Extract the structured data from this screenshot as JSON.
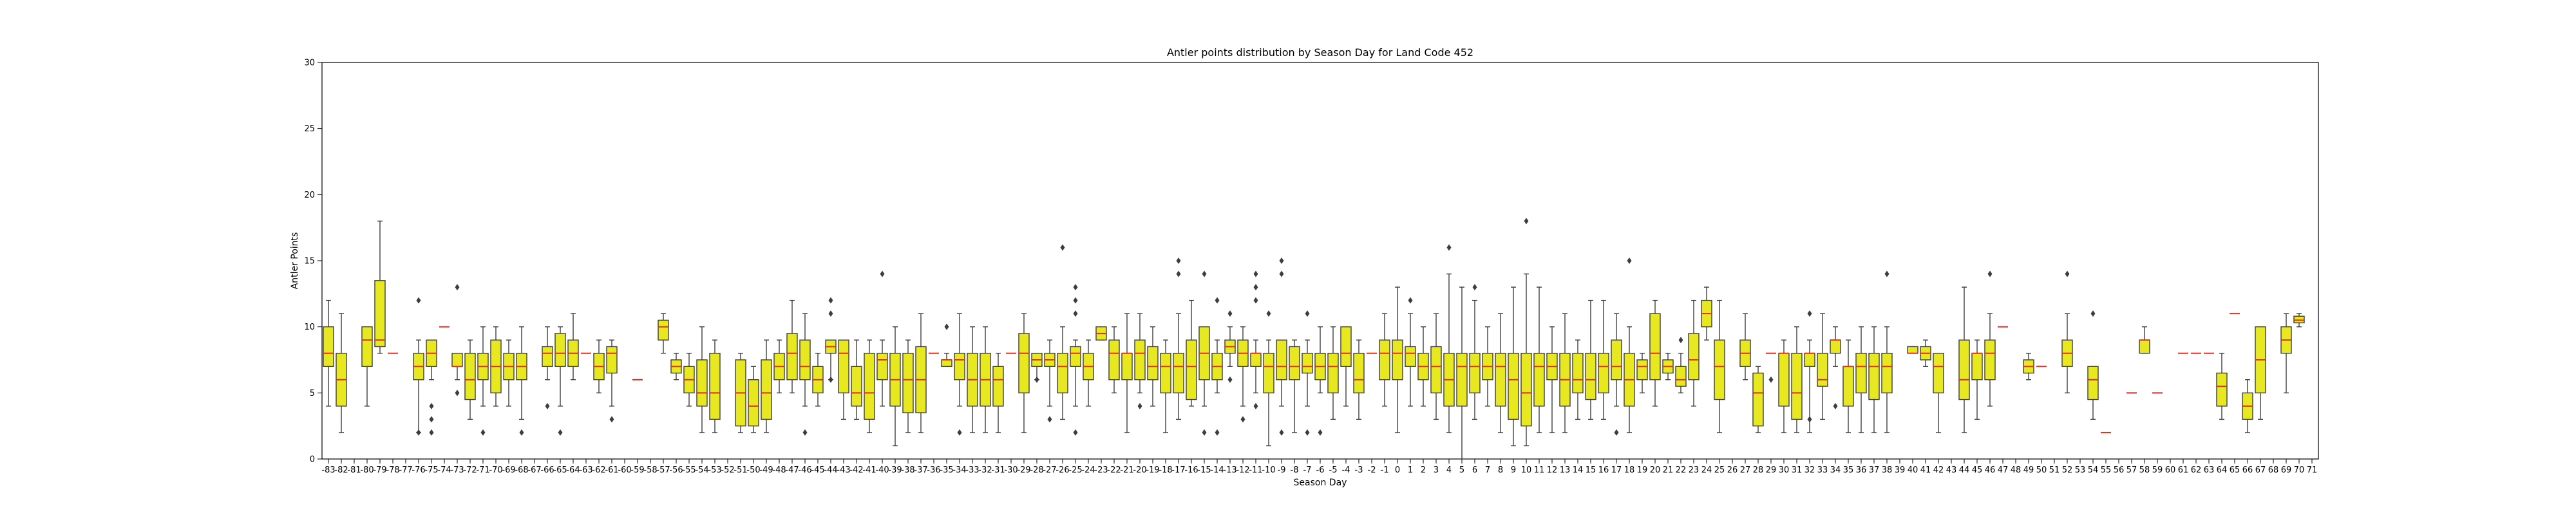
{
  "chart_data": {
    "type": "box",
    "title": "Antler points distribution by Season Day for Land Code 452",
    "xlabel": "Season Day",
    "ylabel": "Antler Points",
    "ylim": [
      0,
      30
    ],
    "yticks": [
      0,
      5,
      10,
      15,
      20,
      25,
      30
    ],
    "x_first": -83,
    "x_last": 71,
    "box_color": "#e8e820",
    "median_color": "#e03020",
    "grid": false,
    "boxes": [
      {
        "day": -83,
        "wl": 4,
        "q1": 7,
        "med": 8,
        "q3": 10,
        "wh": 12
      },
      {
        "day": -82,
        "wl": 2,
        "q1": 4,
        "med": 6,
        "q3": 8,
        "wh": 11
      },
      {
        "day": -80,
        "wl": 4,
        "q1": 7,
        "med": 9,
        "q3": 10,
        "wh": 10
      },
      {
        "day": -79,
        "wl": 8,
        "q1": 8.5,
        "med": 9,
        "q3": 13.5,
        "wh": 18
      },
      {
        "day": -78,
        "med": 8
      },
      {
        "day": -76,
        "wl": 2,
        "q1": 6,
        "med": 7,
        "q3": 8,
        "wh": 9,
        "fl": [
          2,
          12
        ]
      },
      {
        "day": -75,
        "wl": 6,
        "q1": 7,
        "med": 8,
        "q3": 9,
        "wh": 9,
        "fl": [
          2,
          3,
          4
        ]
      },
      {
        "day": -74,
        "med": 10
      },
      {
        "day": -73,
        "wl": 6,
        "q1": 7,
        "med": 7,
        "q3": 8,
        "wh": 8,
        "fl": [
          5,
          13
        ]
      },
      {
        "day": -72,
        "wl": 3,
        "q1": 4.5,
        "med": 6,
        "q3": 8,
        "wh": 9
      },
      {
        "day": -71,
        "wl": 4,
        "q1": 6,
        "med": 7,
        "q3": 8,
        "wh": 10,
        "fl": [
          2
        ]
      },
      {
        "day": -70,
        "wl": 4,
        "q1": 5,
        "med": 7,
        "q3": 9,
        "wh": 10
      },
      {
        "day": -69,
        "wl": 4,
        "q1": 6,
        "med": 7,
        "q3": 8,
        "wh": 9
      },
      {
        "day": -68,
        "wl": 3,
        "q1": 6,
        "med": 7,
        "q3": 8,
        "wh": 10,
        "fl": [
          2
        ]
      },
      {
        "day": -66,
        "wl": 6,
        "q1": 7,
        "med": 8,
        "q3": 8.5,
        "wh": 10,
        "fl": [
          4
        ]
      },
      {
        "day": -65,
        "wl": 4,
        "q1": 7,
        "med": 8,
        "q3": 9.5,
        "wh": 10,
        "fl": [
          2
        ]
      },
      {
        "day": -64,
        "wl": 6,
        "q1": 7,
        "med": 8,
        "q3": 9,
        "wh": 11
      },
      {
        "day": -63,
        "med": 8
      },
      {
        "day": -62,
        "wl": 5,
        "q1": 6,
        "med": 7,
        "q3": 8,
        "wh": 9
      },
      {
        "day": -61,
        "wl": 4,
        "q1": 6.5,
        "med": 8,
        "q3": 8.5,
        "wh": 9,
        "fl": [
          3
        ]
      },
      {
        "day": -59,
        "med": 6
      },
      {
        "day": -57,
        "wl": 8,
        "q1": 9,
        "med": 10,
        "q3": 10.5,
        "wh": 11
      },
      {
        "day": -56,
        "wl": 6,
        "q1": 6.5,
        "med": 7,
        "q3": 7.5,
        "wh": 8
      },
      {
        "day": -55,
        "wl": 4,
        "q1": 5,
        "med": 6,
        "q3": 7,
        "wh": 8
      },
      {
        "day": -54,
        "wl": 2,
        "q1": 4,
        "med": 5,
        "q3": 7.5,
        "wh": 10
      },
      {
        "day": -53,
        "wl": 2,
        "q1": 3,
        "med": 5,
        "q3": 8,
        "wh": 9
      },
      {
        "day": -51,
        "wl": 2,
        "q1": 2.5,
        "med": 5,
        "q3": 7.5,
        "wh": 8
      },
      {
        "day": -50,
        "wl": 2,
        "q1": 2.5,
        "med": 4,
        "q3": 6,
        "wh": 7
      },
      {
        "day": -49,
        "wl": 2,
        "q1": 3,
        "med": 5,
        "q3": 7.5,
        "wh": 9
      },
      {
        "day": -48,
        "wl": 5,
        "q1": 6,
        "med": 7,
        "q3": 8,
        "wh": 9
      },
      {
        "day": -47,
        "wl": 5,
        "q1": 6,
        "med": 8,
        "q3": 9.5,
        "wh": 12
      },
      {
        "day": -46,
        "wl": 4,
        "q1": 6,
        "med": 7,
        "q3": 9,
        "wh": 11,
        "fl": [
          2
        ]
      },
      {
        "day": -45,
        "wl": 4,
        "q1": 5,
        "med": 6,
        "q3": 7,
        "wh": 8
      },
      {
        "day": -44,
        "wl": 6,
        "q1": 8,
        "med": 8.5,
        "q3": 9,
        "wh": 9,
        "fl": [
          6,
          11,
          12
        ]
      },
      {
        "day": -43,
        "wl": 3,
        "q1": 5,
        "med": 8,
        "q3": 9,
        "wh": 9
      },
      {
        "day": -42,
        "wl": 3,
        "q1": 4,
        "med": 5,
        "q3": 7,
        "wh": 9
      },
      {
        "day": -41,
        "wl": 2,
        "q1": 3,
        "med": 5,
        "q3": 8,
        "wh": 9
      },
      {
        "day": -40,
        "wl": 4,
        "q1": 6,
        "med": 7.5,
        "q3": 8,
        "wh": 9,
        "fl": [
          14
        ]
      },
      {
        "day": -39,
        "wl": 1,
        "q1": 4,
        "med": 6,
        "q3": 8,
        "wh": 10
      },
      {
        "day": -38,
        "wl": 2,
        "q1": 3.5,
        "med": 6,
        "q3": 8,
        "wh": 9
      },
      {
        "day": -37,
        "wl": 2,
        "q1": 3.5,
        "med": 6,
        "q3": 8.5,
        "wh": 11
      },
      {
        "day": -36,
        "med": 8
      },
      {
        "day": -35,
        "wl": 7,
        "q1": 7,
        "med": 7.5,
        "q3": 7.5,
        "wh": 8,
        "fl": [
          10
        ]
      },
      {
        "day": -34,
        "wl": 4,
        "q1": 6,
        "med": 7.5,
        "q3": 8,
        "wh": 11,
        "fl": [
          2
        ]
      },
      {
        "day": -33,
        "wl": 2,
        "q1": 4,
        "med": 6,
        "q3": 8,
        "wh": 10
      },
      {
        "day": -32,
        "wl": 2,
        "q1": 4,
        "med": 6,
        "q3": 8,
        "wh": 10
      },
      {
        "day": -31,
        "wl": 2,
        "q1": 4,
        "med": 6,
        "q3": 7,
        "wh": 8
      },
      {
        "day": -30,
        "med": 8
      },
      {
        "day": -29,
        "wl": 2,
        "q1": 5,
        "med": 8,
        "q3": 9.5,
        "wh": 11
      },
      {
        "day": -28,
        "wl": 6,
        "q1": 7,
        "med": 7.5,
        "q3": 8,
        "wh": 8,
        "fl": [
          6
        ]
      },
      {
        "day": -27,
        "wl": 4,
        "q1": 7,
        "med": 7.5,
        "q3": 8,
        "wh": 9,
        "fl": [
          3
        ]
      },
      {
        "day": -26,
        "wl": 3,
        "q1": 5,
        "med": 7,
        "q3": 8,
        "wh": 10,
        "fl": [
          16
        ]
      },
      {
        "day": -25,
        "wl": 4,
        "q1": 7,
        "med": 8,
        "q3": 8.5,
        "wh": 9,
        "fl": [
          2,
          11,
          12,
          13
        ]
      },
      {
        "day": -24,
        "wl": 4,
        "q1": 6,
        "med": 7,
        "q3": 8,
        "wh": 9
      },
      {
        "day": -23,
        "wl": 9,
        "q1": 9,
        "med": 9.5,
        "q3": 10,
        "wh": 10
      },
      {
        "day": -22,
        "wl": 5,
        "q1": 6,
        "med": 8,
        "q3": 9,
        "wh": 10
      },
      {
        "day": -21,
        "wl": 2,
        "q1": 6,
        "med": 8,
        "q3": 8,
        "wh": 11
      },
      {
        "day": -20,
        "wl": 5,
        "q1": 6,
        "med": 8,
        "q3": 9,
        "wh": 11,
        "fl": [
          4
        ]
      },
      {
        "day": -19,
        "wl": 4,
        "q1": 6,
        "med": 7,
        "q3": 8.5,
        "wh": 10
      },
      {
        "day": -18,
        "wl": 2,
        "q1": 5,
        "med": 7,
        "q3": 8,
        "wh": 9
      },
      {
        "day": -17,
        "wl": 3,
        "q1": 5,
        "med": 7,
        "q3": 8,
        "wh": 11,
        "fl": [
          14,
          15
        ]
      },
      {
        "day": -16,
        "wl": 4,
        "q1": 4.5,
        "med": 7,
        "q3": 9,
        "wh": 12
      },
      {
        "day": -15,
        "wl": 4,
        "q1": 6,
        "med": 8,
        "q3": 10,
        "wh": 10,
        "fl": [
          2,
          14
        ]
      },
      {
        "day": -14,
        "wl": 5,
        "q1": 6,
        "med": 7,
        "q3": 8,
        "wh": 9,
        "fl": [
          2,
          12
        ]
      },
      {
        "day": -13,
        "wl": 7,
        "q1": 8,
        "med": 8.5,
        "q3": 9,
        "wh": 10,
        "fl": [
          6,
          11
        ]
      },
      {
        "day": -12,
        "wl": 4,
        "q1": 7,
        "med": 8,
        "q3": 9,
        "wh": 10,
        "fl": [
          3
        ]
      },
      {
        "day": -11,
        "wl": 5,
        "q1": 7,
        "med": 8,
        "q3": 8,
        "wh": 9,
        "fl": [
          4,
          12,
          13,
          14
        ]
      },
      {
        "day": -10,
        "wl": 1,
        "q1": 5,
        "med": 7,
        "q3": 8,
        "wh": 9,
        "fl": [
          11
        ]
      },
      {
        "day": -9,
        "wl": 4,
        "q1": 6,
        "med": 7,
        "q3": 9,
        "wh": 9,
        "fl": [
          2,
          14,
          15
        ]
      },
      {
        "day": -8,
        "wl": 2,
        "q1": 6,
        "med": 7,
        "q3": 8.5,
        "wh": 9
      },
      {
        "day": -7,
        "wl": 4,
        "q1": 6.5,
        "med": 7,
        "q3": 8,
        "wh": 9,
        "fl": [
          2,
          11
        ]
      },
      {
        "day": -6,
        "wl": 5,
        "q1": 6,
        "med": 7,
        "q3": 8,
        "wh": 10,
        "fl": [
          2
        ]
      },
      {
        "day": -5,
        "wl": 3,
        "q1": 5,
        "med": 7,
        "q3": 8,
        "wh": 10
      },
      {
        "day": -4,
        "wl": 4,
        "q1": 7,
        "med": 8,
        "q3": 10,
        "wh": 10
      },
      {
        "day": -3,
        "wl": 3,
        "q1": 5,
        "med": 6,
        "q3": 8,
        "wh": 9
      },
      {
        "day": -2,
        "med": 8
      },
      {
        "day": -1,
        "wl": 4,
        "q1": 6,
        "med": 8,
        "q3": 9,
        "wh": 11
      },
      {
        "day": 0,
        "wl": 2,
        "q1": 6,
        "med": 8,
        "q3": 9,
        "wh": 13
      },
      {
        "day": 1,
        "wl": 4,
        "q1": 7,
        "med": 8,
        "q3": 8.5,
        "wh": 11,
        "fl": [
          12
        ]
      },
      {
        "day": 2,
        "wl": 4,
        "q1": 6,
        "med": 7,
        "q3": 8,
        "wh": 10
      },
      {
        "day": 3,
        "wl": 3,
        "q1": 5,
        "med": 7,
        "q3": 8.5,
        "wh": 11
      },
      {
        "day": 4,
        "wl": 2,
        "q1": 4,
        "med": 6,
        "q3": 8,
        "wh": 14,
        "fl": [
          16
        ]
      },
      {
        "day": 5,
        "wl": 0,
        "q1": 4,
        "med": 7,
        "q3": 8,
        "wh": 13
      },
      {
        "day": 6,
        "wl": 3,
        "q1": 5,
        "med": 7,
        "q3": 8,
        "wh": 12,
        "fl": [
          13
        ]
      },
      {
        "day": 7,
        "wl": 4,
        "q1": 6,
        "med": 7,
        "q3": 8,
        "wh": 10
      },
      {
        "day": 8,
        "wl": 2,
        "q1": 4,
        "med": 7,
        "q3": 8,
        "wh": 11
      },
      {
        "day": 9,
        "wl": 1,
        "q1": 3,
        "med": 6,
        "q3": 8,
        "wh": 13
      },
      {
        "day": 10,
        "wl": 1,
        "q1": 2.5,
        "med": 5,
        "q3": 8,
        "wh": 14,
        "fl": [
          18
        ]
      },
      {
        "day": 11,
        "wl": 2,
        "q1": 4,
        "med": 7,
        "q3": 8,
        "wh": 13
      },
      {
        "day": 12,
        "wl": 2,
        "q1": 6,
        "med": 7,
        "q3": 8,
        "wh": 10
      },
      {
        "day": 13,
        "wl": 2,
        "q1": 4,
        "med": 6,
        "q3": 8,
        "wh": 11
      },
      {
        "day": 14,
        "wl": 3,
        "q1": 5,
        "med": 6,
        "q3": 8,
        "wh": 9
      },
      {
        "day": 15,
        "wl": 3,
        "q1": 4.5,
        "med": 6,
        "q3": 8,
        "wh": 12
      },
      {
        "day": 16,
        "wl": 3,
        "q1": 5,
        "med": 7,
        "q3": 8,
        "wh": 12
      },
      {
        "day": 17,
        "wl": 4,
        "q1": 6,
        "med": 7,
        "q3": 9,
        "wh": 11,
        "fl": [
          2
        ]
      },
      {
        "day": 18,
        "wl": 2,
        "q1": 4,
        "med": 6,
        "q3": 8,
        "wh": 10,
        "fl": [
          15
        ]
      },
      {
        "day": 19,
        "wl": 5,
        "q1": 6,
        "med": 7,
        "q3": 7.5,
        "wh": 8
      },
      {
        "day": 20,
        "wl": 4,
        "q1": 6,
        "med": 8,
        "q3": 11,
        "wh": 12
      },
      {
        "day": 21,
        "wl": 6,
        "q1": 6.5,
        "med": 7,
        "q3": 7.5,
        "wh": 8
      },
      {
        "day": 22,
        "wl": 5,
        "q1": 5.5,
        "med": 6,
        "q3": 7,
        "wh": 8,
        "fl": [
          9
        ]
      },
      {
        "day": 23,
        "wl": 4,
        "q1": 6,
        "med": 7.5,
        "q3": 9.5,
        "wh": 12
      },
      {
        "day": 24,
        "wl": 9,
        "q1": 10,
        "med": 11,
        "q3": 12,
        "wh": 13
      },
      {
        "day": 25,
        "wl": 2,
        "q1": 4.5,
        "med": 7,
        "q3": 9,
        "wh": 12
      },
      {
        "day": 27,
        "wl": 6,
        "q1": 7,
        "med": 8,
        "q3": 9,
        "wh": 11
      },
      {
        "day": 28,
        "wl": 2,
        "q1": 2.5,
        "med": 5,
        "q3": 6.5,
        "wh": 7
      },
      {
        "day": 29,
        "med": 8,
        "fl": [
          6
        ]
      },
      {
        "day": 30,
        "wl": 2,
        "q1": 4,
        "med": 8,
        "q3": 8,
        "wh": 9
      },
      {
        "day": 31,
        "wl": 2,
        "q1": 3,
        "med": 5,
        "q3": 8,
        "wh": 10
      },
      {
        "day": 32,
        "wl": 2,
        "q1": 7,
        "med": 8,
        "q3": 8,
        "wh": 9,
        "fl": [
          3,
          11
        ]
      },
      {
        "day": 33,
        "wl": 3,
        "q1": 5.5,
        "med": 6,
        "q3": 8,
        "wh": 11
      },
      {
        "day": 34,
        "wl": 7,
        "q1": 8,
        "med": 9,
        "q3": 9,
        "wh": 10,
        "fl": [
          4
        ]
      },
      {
        "day": 35,
        "wl": 2,
        "q1": 4,
        "med": 7,
        "q3": 7,
        "wh": 9
      },
      {
        "day": 36,
        "wl": 2,
        "q1": 5,
        "med": 7,
        "q3": 8,
        "wh": 10
      },
      {
        "day": 37,
        "wl": 2,
        "q1": 4.5,
        "med": 7,
        "q3": 8,
        "wh": 10
      },
      {
        "day": 38,
        "wl": 2,
        "q1": 5,
        "med": 7,
        "q3": 8,
        "wh": 10,
        "fl": [
          14
        ]
      },
      {
        "day": 40,
        "wl": 8,
        "q1": 8,
        "med": 8,
        "q3": 8.5,
        "wh": 8.5
      },
      {
        "day": 41,
        "wl": 7,
        "q1": 7.5,
        "med": 8,
        "q3": 8.5,
        "wh": 9
      },
      {
        "day": 42,
        "wl": 2,
        "q1": 5,
        "med": 7,
        "q3": 8,
        "wh": 8
      },
      {
        "day": 44,
        "wl": 2,
        "q1": 4.5,
        "med": 6,
        "q3": 9,
        "wh": 13
      },
      {
        "day": 45,
        "wl": 3,
        "q1": 6,
        "med": 8,
        "q3": 8,
        "wh": 9
      },
      {
        "day": 46,
        "wl": 4,
        "q1": 6,
        "med": 8,
        "q3": 9,
        "wh": 11,
        "fl": [
          14
        ]
      },
      {
        "day": 47,
        "med": 10
      },
      {
        "day": 49,
        "wl": 6,
        "q1": 6.5,
        "med": 7,
        "q3": 7.5,
        "wh": 8
      },
      {
        "day": 50,
        "med": 7
      },
      {
        "day": 52,
        "wl": 5,
        "q1": 7,
        "med": 8,
        "q3": 9,
        "wh": 11,
        "fl": [
          14
        ]
      },
      {
        "day": 54,
        "wl": 3,
        "q1": 4.5,
        "med": 6,
        "q3": 7,
        "wh": 7,
        "fl": [
          11
        ]
      },
      {
        "day": 55,
        "med": 2
      },
      {
        "day": 57,
        "med": 5
      },
      {
        "day": 58,
        "wl": 8,
        "q1": 8,
        "med": 9,
        "q3": 9,
        "wh": 10
      },
      {
        "day": 59,
        "med": 5
      },
      {
        "day": 61,
        "med": 8
      },
      {
        "day": 62,
        "med": 8
      },
      {
        "day": 63,
        "med": 8
      },
      {
        "day": 64,
        "wl": 3,
        "q1": 4,
        "med": 5.5,
        "q3": 6.5,
        "wh": 8
      },
      {
        "day": 65,
        "med": 11
      },
      {
        "day": 66,
        "wl": 2,
        "q1": 3,
        "med": 4,
        "q3": 5,
        "wh": 6
      },
      {
        "day": 67,
        "wl": 3,
        "q1": 5,
        "med": 7.5,
        "q3": 10,
        "wh": 10
      },
      {
        "day": 69,
        "wl": 5,
        "q1": 8,
        "med": 9,
        "q3": 10,
        "wh": 11
      },
      {
        "day": 70,
        "wl": 10,
        "q1": 10.3,
        "med": 10.5,
        "q3": 10.8,
        "wh": 11
      }
    ]
  }
}
